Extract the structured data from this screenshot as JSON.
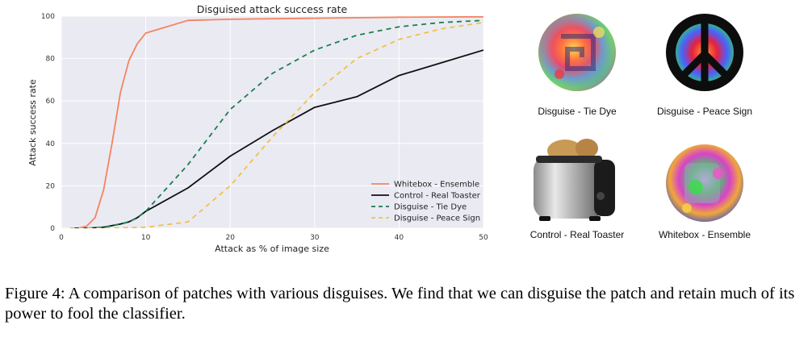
{
  "chart_data": {
    "type": "line",
    "title": "Disguised attack success rate",
    "xlabel": "Attack as % of image size",
    "ylabel": "Attack success rate",
    "xlim": [
      0,
      50
    ],
    "ylim": [
      0,
      100
    ],
    "xticks": [
      0,
      10,
      20,
      30,
      40,
      50
    ],
    "yticks": [
      0,
      20,
      40,
      60,
      80,
      100
    ],
    "grid": true,
    "legend_position": "lower-right",
    "series": [
      {
        "name": "Whitebox - Ensemble",
        "color": "#f4845f",
        "dash": "solid",
        "x": [
          1,
          2,
          3,
          4,
          5,
          6,
          7,
          8,
          9,
          10,
          15,
          20,
          30,
          40,
          50
        ],
        "y": [
          0,
          0,
          1,
          5,
          18,
          40,
          64,
          79,
          87,
          92,
          98,
          98.5,
          99,
          99.5,
          99.7
        ]
      },
      {
        "name": "Control - Real Toaster",
        "color": "#111111",
        "dash": "solid",
        "x": [
          1,
          3,
          5,
          7,
          8,
          9,
          10,
          15,
          20,
          25,
          30,
          35,
          40,
          45,
          50
        ],
        "y": [
          0,
          0,
          0.5,
          2,
          3,
          5,
          8,
          19,
          34,
          46,
          57,
          62,
          72,
          78,
          84
        ]
      },
      {
        "name": "Disguise - Tie Dye",
        "color": "#1a7d4e",
        "dash": "dashed",
        "x": [
          1,
          3,
          5,
          7,
          8,
          9,
          10,
          15,
          20,
          25,
          30,
          35,
          40,
          45,
          50
        ],
        "y": [
          0,
          0,
          0.5,
          2,
          3,
          5,
          8,
          30,
          56,
          73,
          84,
          91,
          95,
          97,
          98
        ]
      },
      {
        "name": "Disguise - Peace Sign",
        "color": "#f2c048",
        "dash": "dashed",
        "x": [
          1,
          5,
          10,
          15,
          20,
          25,
          30,
          35,
          40,
          45,
          50
        ],
        "y": [
          0,
          0,
          0.5,
          3,
          20,
          43,
          64,
          80,
          89,
          94,
          97
        ]
      }
    ]
  },
  "patches": [
    {
      "caption": "Disguise - Tie Dye",
      "icon": "tie-dye-patch-icon"
    },
    {
      "caption": "Disguise - Peace Sign",
      "icon": "peace-sign-patch-icon"
    },
    {
      "caption": "Control - Real Toaster",
      "icon": "toaster-icon"
    },
    {
      "caption": "Whitebox - Ensemble",
      "icon": "ensemble-patch-icon"
    }
  ],
  "figure_caption": "Figure 4: A comparison of patches with various disguises. We find that we can disguise the patch and retain much of its power to fool the classifier."
}
